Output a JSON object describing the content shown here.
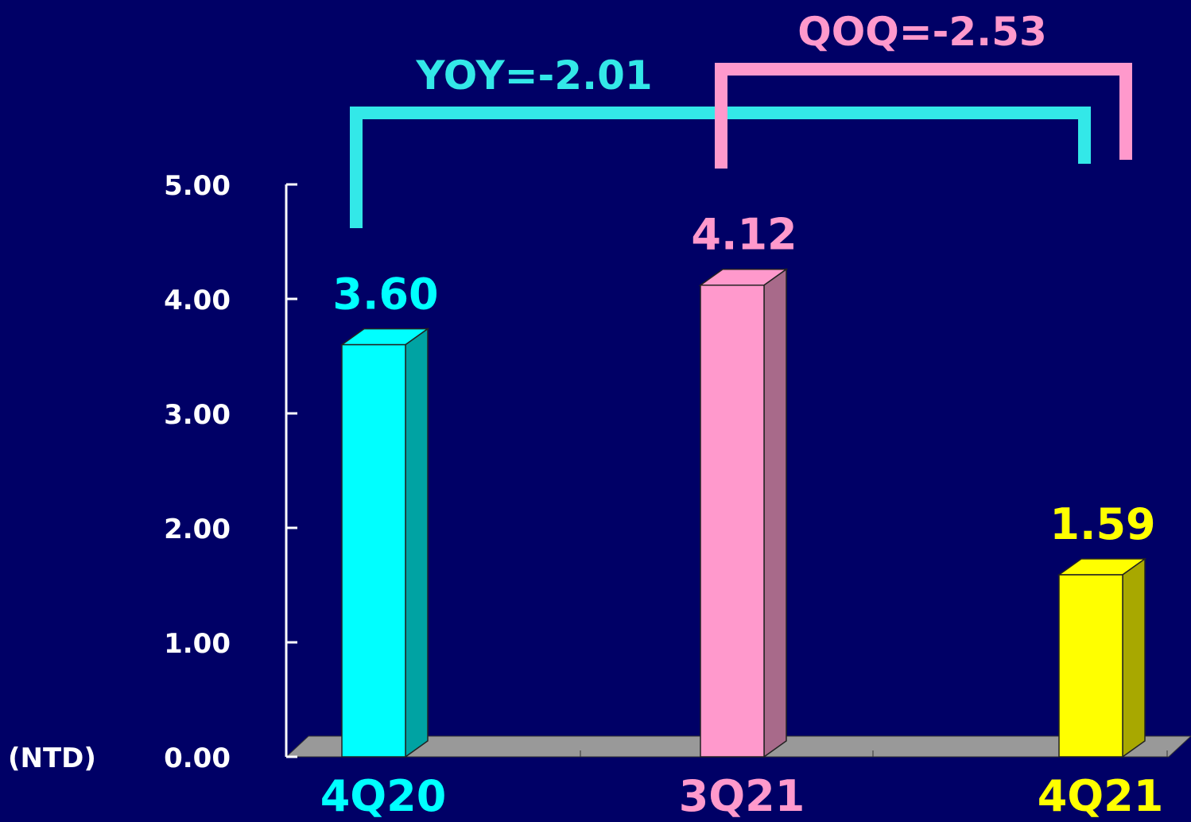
{
  "chart_data": {
    "type": "bar",
    "title": "",
    "categories": [
      "4Q20",
      "3Q21",
      "4Q21"
    ],
    "values": [
      3.6,
      4.12,
      1.59
    ],
    "value_labels": [
      "3.60",
      "4.12",
      "1.59"
    ],
    "ylabel": "(NTD)",
    "ylim": [
      0,
      5
    ],
    "yticks": [
      0,
      1,
      2,
      3,
      4,
      5
    ],
    "ytick_labels": [
      "0.00",
      "1.00",
      "2.00",
      "3.00",
      "4.00",
      "5.00"
    ],
    "grid": false,
    "legend": "none",
    "bar_colors": [
      "#00FFFF",
      "#FF99CC",
      "#FFFF00"
    ],
    "bar_side_colors": [
      "#00A3A3",
      "#A86A8A",
      "#A8A800"
    ],
    "annotations": [
      {
        "label": "YOY=-2.01",
        "from": "4Q20",
        "to": "4Q21",
        "color": "#33E8E8"
      },
      {
        "label": "QOQ=-2.53",
        "from": "3Q21",
        "to": "4Q21",
        "color": "#FF99CC"
      }
    ]
  },
  "colors": {
    "background": "#000066",
    "axis": "#FFFFFF",
    "floor": "#999999",
    "tick_text": "#FFFFFF"
  }
}
